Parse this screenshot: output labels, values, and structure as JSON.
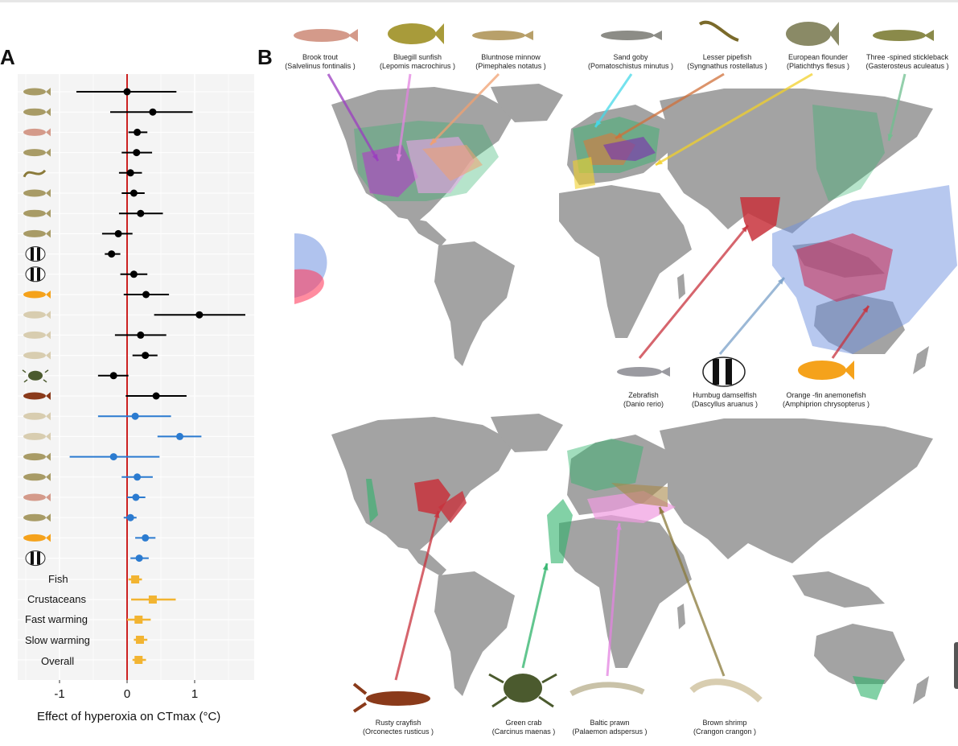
{
  "panel_a_letter": "A",
  "panel_b_letter": "B",
  "colors": {
    "grid_bg": "#f4f4f4",
    "zero_line": "#cc2222",
    "species_black": "#000000",
    "species_blue": "#2b7bd0",
    "summary_yellow": "#f2b431",
    "land": "#a3a3a3"
  },
  "chart_data": {
    "type": "forest",
    "xlabel": "Effect of hyperoxia on CTmax (°C)",
    "xlim": [
      -1.7,
      1.85
    ],
    "xticks": [
      -1,
      0,
      1
    ],
    "xtick_labels": [
      "-1",
      "0",
      "1"
    ],
    "reference_line": 0,
    "grid": true,
    "rows": [
      {
        "icon": "fish-icon",
        "est": 0.0,
        "lo": -0.75,
        "hi": 0.73,
        "group": "black"
      },
      {
        "icon": "fish-icon",
        "est": 0.38,
        "lo": -0.25,
        "hi": 0.97,
        "group": "black"
      },
      {
        "icon": "trout-icon",
        "est": 0.15,
        "lo": 0.02,
        "hi": 0.3,
        "group": "black"
      },
      {
        "icon": "fish-icon",
        "est": 0.14,
        "lo": -0.08,
        "hi": 0.37,
        "group": "black"
      },
      {
        "icon": "pipefish-icon",
        "est": 0.05,
        "lo": -0.12,
        "hi": 0.22,
        "group": "black"
      },
      {
        "icon": "flounder-icon",
        "est": 0.1,
        "lo": -0.08,
        "hi": 0.26,
        "group": "black"
      },
      {
        "icon": "goby-icon",
        "est": 0.2,
        "lo": -0.12,
        "hi": 0.53,
        "group": "black"
      },
      {
        "icon": "zebrafish-icon",
        "est": -0.13,
        "lo": -0.37,
        "hi": 0.08,
        "group": "black"
      },
      {
        "icon": "damselfish-icon",
        "est": -0.23,
        "lo": -0.33,
        "hi": -0.1,
        "group": "black"
      },
      {
        "icon": "damselfish-icon",
        "est": 0.1,
        "lo": -0.1,
        "hi": 0.3,
        "group": "black"
      },
      {
        "icon": "anemonefish-icon",
        "est": 0.28,
        "lo": -0.05,
        "hi": 0.62,
        "group": "black"
      },
      {
        "icon": "shrimp-icon",
        "est": 1.07,
        "lo": 0.4,
        "hi": 1.75,
        "group": "black"
      },
      {
        "icon": "shrimp-icon",
        "est": 0.2,
        "lo": -0.18,
        "hi": 0.58,
        "group": "black"
      },
      {
        "icon": "shrimp-icon",
        "est": 0.27,
        "lo": 0.08,
        "hi": 0.45,
        "group": "black"
      },
      {
        "icon": "crab-icon",
        "est": -0.2,
        "lo": -0.43,
        "hi": 0.02,
        "group": "black"
      },
      {
        "icon": "crayfish-icon",
        "est": 0.43,
        "lo": -0.02,
        "hi": 0.88,
        "group": "black"
      },
      {
        "icon": "shrimp-icon",
        "est": 0.12,
        "lo": -0.43,
        "hi": 0.65,
        "group": "blue"
      },
      {
        "icon": "shrimp-icon",
        "est": 0.78,
        "lo": 0.45,
        "hi": 1.1,
        "group": "blue"
      },
      {
        "icon": "goby-icon",
        "est": -0.2,
        "lo": -0.85,
        "hi": 0.48,
        "group": "blue"
      },
      {
        "icon": "flounder-icon",
        "est": 0.15,
        "lo": -0.08,
        "hi": 0.38,
        "group": "blue"
      },
      {
        "icon": "trout-icon",
        "est": 0.13,
        "lo": 0.0,
        "hi": 0.27,
        "group": "blue"
      },
      {
        "icon": "zebrafish-icon",
        "est": 0.05,
        "lo": -0.05,
        "hi": 0.14,
        "group": "blue"
      },
      {
        "icon": "anemonefish-icon",
        "est": 0.27,
        "lo": 0.12,
        "hi": 0.42,
        "group": "blue"
      },
      {
        "icon": "damselfish-icon",
        "est": 0.18,
        "lo": 0.05,
        "hi": 0.32,
        "group": "blue"
      }
    ],
    "summaries": [
      {
        "label": "Fish",
        "est": 0.12,
        "lo": 0.02,
        "hi": 0.22
      },
      {
        "label": "Crustaceans",
        "est": 0.38,
        "lo": 0.06,
        "hi": 0.72
      },
      {
        "label": "Fast warming",
        "est": 0.17,
        "lo": 0.0,
        "hi": 0.35
      },
      {
        "label": "Slow warming",
        "est": 0.19,
        "lo": 0.1,
        "hi": 0.3
      },
      {
        "label": "Overall",
        "est": 0.17,
        "lo": 0.08,
        "hi": 0.28
      }
    ]
  },
  "top_species": [
    {
      "common": "Brook trout",
      "latin": "(Salvelinus fontinalis )",
      "icon": "trout-icon"
    },
    {
      "common": "Bluegill sunfish",
      "latin": "(Lepomis macrochirus )",
      "icon": "sunfish-icon"
    },
    {
      "common": "Bluntnose minnow",
      "latin": "(Pimephales notatus )",
      "icon": "minnow-icon"
    },
    {
      "common": "Sand goby",
      "latin": "(Pomatoschistus minutus )",
      "icon": "goby-icon"
    },
    {
      "common": "Lesser pipefish",
      "latin": "(Syngnathus rostellatus )",
      "icon": "pipefish-icon"
    },
    {
      "common": "European flounder",
      "latin": "(Platichthys flesus )",
      "icon": "flounder-icon"
    },
    {
      "common": "Three -spined stickleback",
      "latin": "(Gasterosteus aculeatus )",
      "icon": "stickleback-icon"
    }
  ],
  "mid_species": [
    {
      "common": "Zebrafish",
      "latin": "(Danio rerio)",
      "icon": "zebrafish-icon"
    },
    {
      "common": "Humbug damselfish",
      "latin": "(Dascyllus aruanus )",
      "icon": "damselfish-icon"
    },
    {
      "common": "Orange -fin anemonefish",
      "latin": "(Amphiprion chrysopterus )",
      "icon": "anemonefish-icon"
    }
  ],
  "bottom_species": [
    {
      "common": "Rusty crayfish",
      "latin": "(Orconectes rusticus )",
      "icon": "crayfish-icon"
    },
    {
      "common": "Green crab",
      "latin": "(Carcinus maenas )",
      "icon": "crab-icon"
    },
    {
      "common": "Baltic prawn",
      "latin": "(Palaemon adspersus )",
      "icon": "prawn-icon"
    },
    {
      "common": "Brown shrimp",
      "latin": "(Crangon crangon )",
      "icon": "shrimp-icon"
    }
  ]
}
